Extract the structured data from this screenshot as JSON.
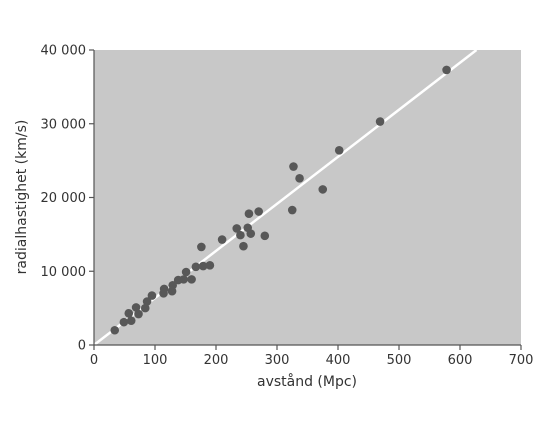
{
  "chart_data": {
    "type": "scatter",
    "title": "",
    "xlabel": "avstånd (Mpc)",
    "ylabel": "radialhastighet (km/s)",
    "xlim": [
      0,
      700
    ],
    "ylim": [
      0,
      40000
    ],
    "x_ticks": [
      0,
      100,
      200,
      300,
      400,
      500,
      600,
      700
    ],
    "x_tick_labels": [
      "0",
      "100",
      "200",
      "300",
      "400",
      "500",
      "600",
      "700"
    ],
    "y_ticks": [
      0,
      10000,
      20000,
      30000,
      40000
    ],
    "y_tick_labels": [
      "0",
      "10 000",
      "20 000",
      "30 000",
      "40 000"
    ],
    "grid": false,
    "colors": {
      "plot_background": "#c8c8c8",
      "points": "#585858",
      "fit_line": "#ffffff",
      "axis": "#555555",
      "text": "#333333"
    },
    "fit_line": {
      "x": [
        0,
        627
      ],
      "y": [
        0,
        40000
      ]
    },
    "series": [
      {
        "points": [
          [
            34,
            2000
          ],
          [
            49,
            3100
          ],
          [
            57,
            4300
          ],
          [
            61,
            3300
          ],
          [
            69,
            5100
          ],
          [
            73,
            4200
          ],
          [
            84,
            5000
          ],
          [
            87,
            5900
          ],
          [
            95,
            6700
          ],
          [
            114,
            7000
          ],
          [
            115,
            7600
          ],
          [
            128,
            7300
          ],
          [
            129,
            8100
          ],
          [
            138,
            8800
          ],
          [
            147,
            8900
          ],
          [
            151,
            9900
          ],
          [
            160,
            8900
          ],
          [
            167,
            10600
          ],
          [
            176,
            13300
          ],
          [
            179,
            10700
          ],
          [
            190,
            10800
          ],
          [
            210,
            14300
          ],
          [
            234,
            15800
          ],
          [
            240,
            14900
          ],
          [
            245,
            13400
          ],
          [
            252,
            15900
          ],
          [
            254,
            17800
          ],
          [
            257,
            15100
          ],
          [
            270,
            18100
          ],
          [
            280,
            14800
          ],
          [
            325,
            18300
          ],
          [
            327,
            24200
          ],
          [
            337,
            22600
          ],
          [
            375,
            21100
          ],
          [
            402,
            26400
          ],
          [
            469,
            30300
          ],
          [
            578,
            37300
          ]
        ]
      }
    ]
  }
}
